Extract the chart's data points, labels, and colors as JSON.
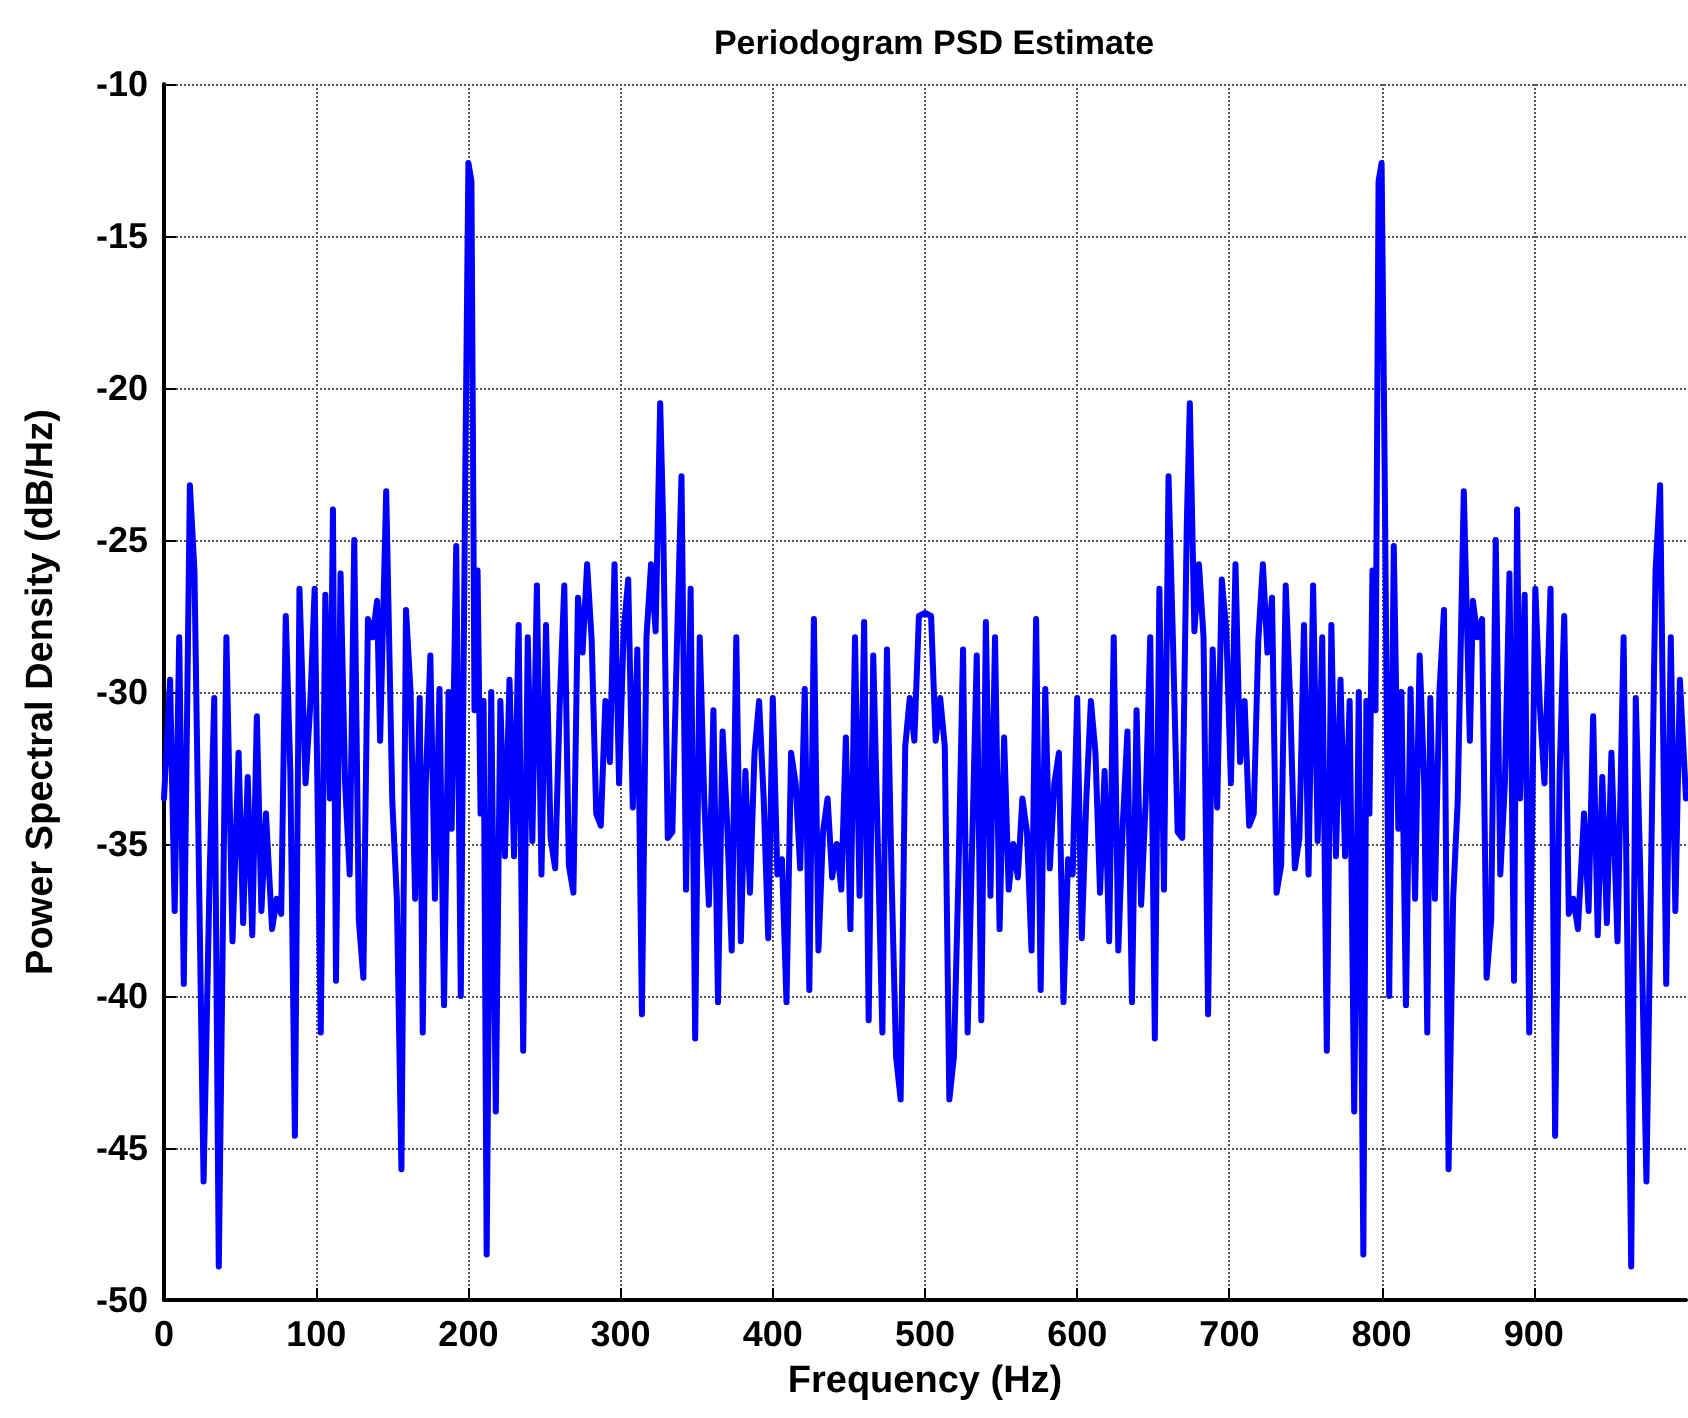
{
  "chart_data": {
    "type": "line",
    "title": "Periodogram PSD Estimate",
    "xlabel": "Frequency (Hz)",
    "ylabel": "Power Spectral Density (dB/Hz)",
    "xlim": [
      0,
      1000
    ],
    "ylim": [
      -50,
      -10
    ],
    "xticks": [
      0,
      100,
      200,
      300,
      400,
      500,
      600,
      700,
      800,
      900
    ],
    "yticks": [
      -50,
      -45,
      -40,
      -35,
      -30,
      -25,
      -20,
      -15,
      -10
    ],
    "grid": true,
    "marker": "none",
    "line_style": "solid",
    "series": [
      {
        "color": "#0000ff",
        "x": [
          0,
          4,
          7,
          10,
          13,
          17,
          20,
          26,
          30,
          33,
          36,
          41,
          45,
          49,
          52,
          55,
          58,
          61,
          64,
          67,
          71,
          74,
          77,
          80,
          83,
          86,
          89,
          93,
          96,
          99,
          103,
          106,
          109,
          111,
          113,
          116,
          119,
          122,
          125,
          128,
          131,
          134,
          137,
          140,
          142,
          146,
          150,
          153,
          156,
          159,
          162,
          165,
          168,
          170,
          172,
          175,
          178,
          181,
          184,
          187,
          189,
          192,
          195,
          198,
          200,
          202,
          204,
          206,
          208,
          210,
          212,
          215,
          218,
          221,
          224,
          227,
          230,
          233,
          236,
          239,
          242,
          245,
          248,
          251,
          254,
          257,
          260,
          263,
          266,
          269,
          272,
          275,
          278,
          281,
          284,
          287,
          290,
          293,
          296,
          299,
          302,
          305,
          308,
          311,
          314,
          317,
          320,
          323,
          326,
          328,
          331,
          334,
          337,
          340,
          343,
          346,
          349,
          352,
          355,
          358,
          361,
          364,
          367,
          370,
          373,
          376,
          379,
          382,
          385,
          388,
          391,
          394,
          397,
          400,
          403,
          406,
          409,
          412,
          415,
          418,
          421,
          424,
          427,
          430,
          433,
          436,
          439,
          442,
          445,
          448,
          451,
          454,
          457,
          460,
          463,
          466,
          469,
          472,
          475,
          478,
          481,
          484,
          487,
          490,
          493,
          496,
          500,
          504,
          507,
          510,
          513,
          516,
          519,
          522,
          525,
          528,
          531,
          534,
          537,
          540,
          543,
          546,
          549,
          552,
          555,
          558,
          561,
          564,
          567,
          570,
          573,
          576,
          579,
          582,
          585,
          588,
          591,
          594,
          597,
          600,
          603,
          606,
          609,
          612,
          615,
          618,
          621,
          624,
          627,
          630,
          633,
          636,
          639,
          642,
          645,
          648,
          651,
          654,
          657,
          660,
          663,
          666,
          669,
          672,
          674,
          677,
          680,
          683,
          686,
          689,
          692,
          695,
          698,
          701,
          704,
          707,
          710,
          713,
          716,
          719,
          722,
          725,
          728,
          731,
          734,
          737,
          740,
          743,
          746,
          749,
          752,
          755,
          758,
          761,
          764,
          767,
          770,
          773,
          776,
          779,
          782,
          785,
          788,
          790,
          792,
          794,
          796,
          798,
          800,
          802,
          805,
          808,
          811,
          813,
          816,
          819,
          822,
          825,
          828,
          830,
          832,
          835,
          838,
          841,
          844,
          847,
          850,
          854,
          858,
          860,
          863,
          866,
          869,
          872,
          875,
          878,
          881,
          884,
          887,
          889,
          891,
          894,
          897,
          901,
          904,
          907,
          911,
          914,
          917,
          920,
          923,
          926,
          929,
          933,
          936,
          939,
          942,
          945,
          948,
          951,
          955,
          959,
          964,
          967,
          970,
          974,
          980,
          983,
          987,
          990,
          993,
          996,
          1000
        ],
        "values": [
          -33.5,
          -29.6,
          -37.2,
          -28.2,
          -39.6,
          -23.2,
          -26,
          -46.1,
          -36,
          -30.2,
          -48.9,
          -28.2,
          -38.2,
          -32,
          -37.6,
          -32.8,
          -38,
          -30.8,
          -37.2,
          -34,
          -37.8,
          -36.8,
          -37.3,
          -27.5,
          -32.6,
          -44.6,
          -26.6,
          -33,
          -30.5,
          -26.6,
          -41.2,
          -26.8,
          -33.5,
          -24,
          -39.5,
          -26.1,
          -33,
          -36,
          -25,
          -37.5,
          -39.4,
          -27.6,
          -28.2,
          -27,
          -31.6,
          -23.4,
          -33.6,
          -36.8,
          -45.7,
          -27.3,
          -30,
          -36.8,
          -30.2,
          -41.2,
          -33,
          -28.8,
          -36.8,
          -29.9,
          -40.3,
          -30,
          -34.5,
          -25.2,
          -40,
          -22.6,
          -12.6,
          -13.2,
          -30.6,
          -26,
          -34,
          -30.3,
          -48.5,
          -30,
          -43.8,
          -30.3,
          -35.4,
          -29.6,
          -35.4,
          -27.8,
          -41.8,
          -28.2,
          -34.9,
          -26.5,
          -36,
          -27.8,
          -34.8,
          -35.8,
          -30.4,
          -26.5,
          -35.7,
          -36.6,
          -26.9,
          -28.7,
          -25.8,
          -28.3,
          -34,
          -34.4,
          -30.3,
          -32.3,
          -25.8,
          -33,
          -28,
          -26.3,
          -33.8,
          -28.6,
          -40.6,
          -28.2,
          -25.8,
          -28,
          -20.5,
          -24.5,
          -34.8,
          -34.6,
          -28.5,
          -22.9,
          -36.5,
          -26.6,
          -41.4,
          -28.2,
          -33.6,
          -37,
          -30.6,
          -40.2,
          -31.3,
          -34.3,
          -38.5,
          -28.2,
          -38.2,
          -32.6,
          -36.6,
          -32,
          -30.3,
          -33.5,
          -38.1,
          -30.2,
          -36,
          -35.5,
          -40.2,
          -32,
          -33,
          -35.8,
          -29.9,
          -39.8,
          -27.6,
          -38.5,
          -34.6,
          -33.5,
          -36.1,
          -35,
          -36.5,
          -31.5,
          -37.8,
          -28.2,
          -36.7,
          -27.7,
          -40.8,
          -28.8,
          -35,
          -41.2,
          -28.6,
          -36,
          -42,
          -43.4,
          -31.8,
          -30.2,
          -31.6,
          -27.5,
          -27.4,
          -27.5,
          -31.6,
          -30.2,
          -31.8,
          -43.4,
          -42,
          -36,
          -28.6,
          -41.2,
          -35,
          -28.8,
          -40.8,
          -27.7,
          -36.7,
          -28.2,
          -37.8,
          -31.5,
          -36.5,
          -35,
          -36.1,
          -33.5,
          -34.6,
          -38.5,
          -27.6,
          -39.8,
          -29.9,
          -35.8,
          -33,
          -32,
          -40.2,
          -35.5,
          -36,
          -30.2,
          -38.1,
          -33.5,
          -30.3,
          -32,
          -36.6,
          -32.6,
          -38.2,
          -28.2,
          -38.5,
          -34.3,
          -31.3,
          -40.2,
          -30.6,
          -37,
          -33.6,
          -28.2,
          -41.4,
          -26.6,
          -36.5,
          -22.9,
          -28.5,
          -34.6,
          -34.8,
          -24.5,
          -20.5,
          -28,
          -25.8,
          -28.2,
          -40.6,
          -28.6,
          -33.8,
          -26.3,
          -28,
          -33,
          -25.8,
          -32.3,
          -30.3,
          -34.4,
          -34,
          -28.3,
          -25.8,
          -28.7,
          -26.9,
          -36.6,
          -35.7,
          -26.5,
          -30.4,
          -35.8,
          -34.8,
          -27.8,
          -36,
          -26.5,
          -34.9,
          -28.2,
          -41.8,
          -27.8,
          -35.4,
          -29.6,
          -35.4,
          -30.3,
          -43.8,
          -30,
          -48.5,
          -30.3,
          -34,
          -26,
          -30.6,
          -13.2,
          -12.6,
          -22.6,
          -40,
          -25.2,
          -34.5,
          -30,
          -40.3,
          -29.9,
          -36.8,
          -28.8,
          -33,
          -41.2,
          -30.2,
          -36.8,
          -30,
          -27.3,
          -45.7,
          -36.8,
          -33.6,
          -23.4,
          -31.6,
          -27,
          -28.2,
          -27.6,
          -39.4,
          -37.5,
          -25,
          -36,
          -33,
          -26.1,
          -39.5,
          -24,
          -33.5,
          -26.8,
          -41.2,
          -26.6,
          -30.5,
          -33,
          -26.6,
          -44.6,
          -32.6,
          -27.5,
          -37.3,
          -36.8,
          -37.8,
          -34,
          -37.2,
          -30.8,
          -38,
          -32.8,
          -37.6,
          -32,
          -38.2,
          -28.2,
          -48.9,
          -30.2,
          -36,
          -46.1,
          -26,
          -23.2,
          -39.6,
          -28.2,
          -37.2,
          -29.6,
          -33.5
        ]
      }
    ]
  }
}
